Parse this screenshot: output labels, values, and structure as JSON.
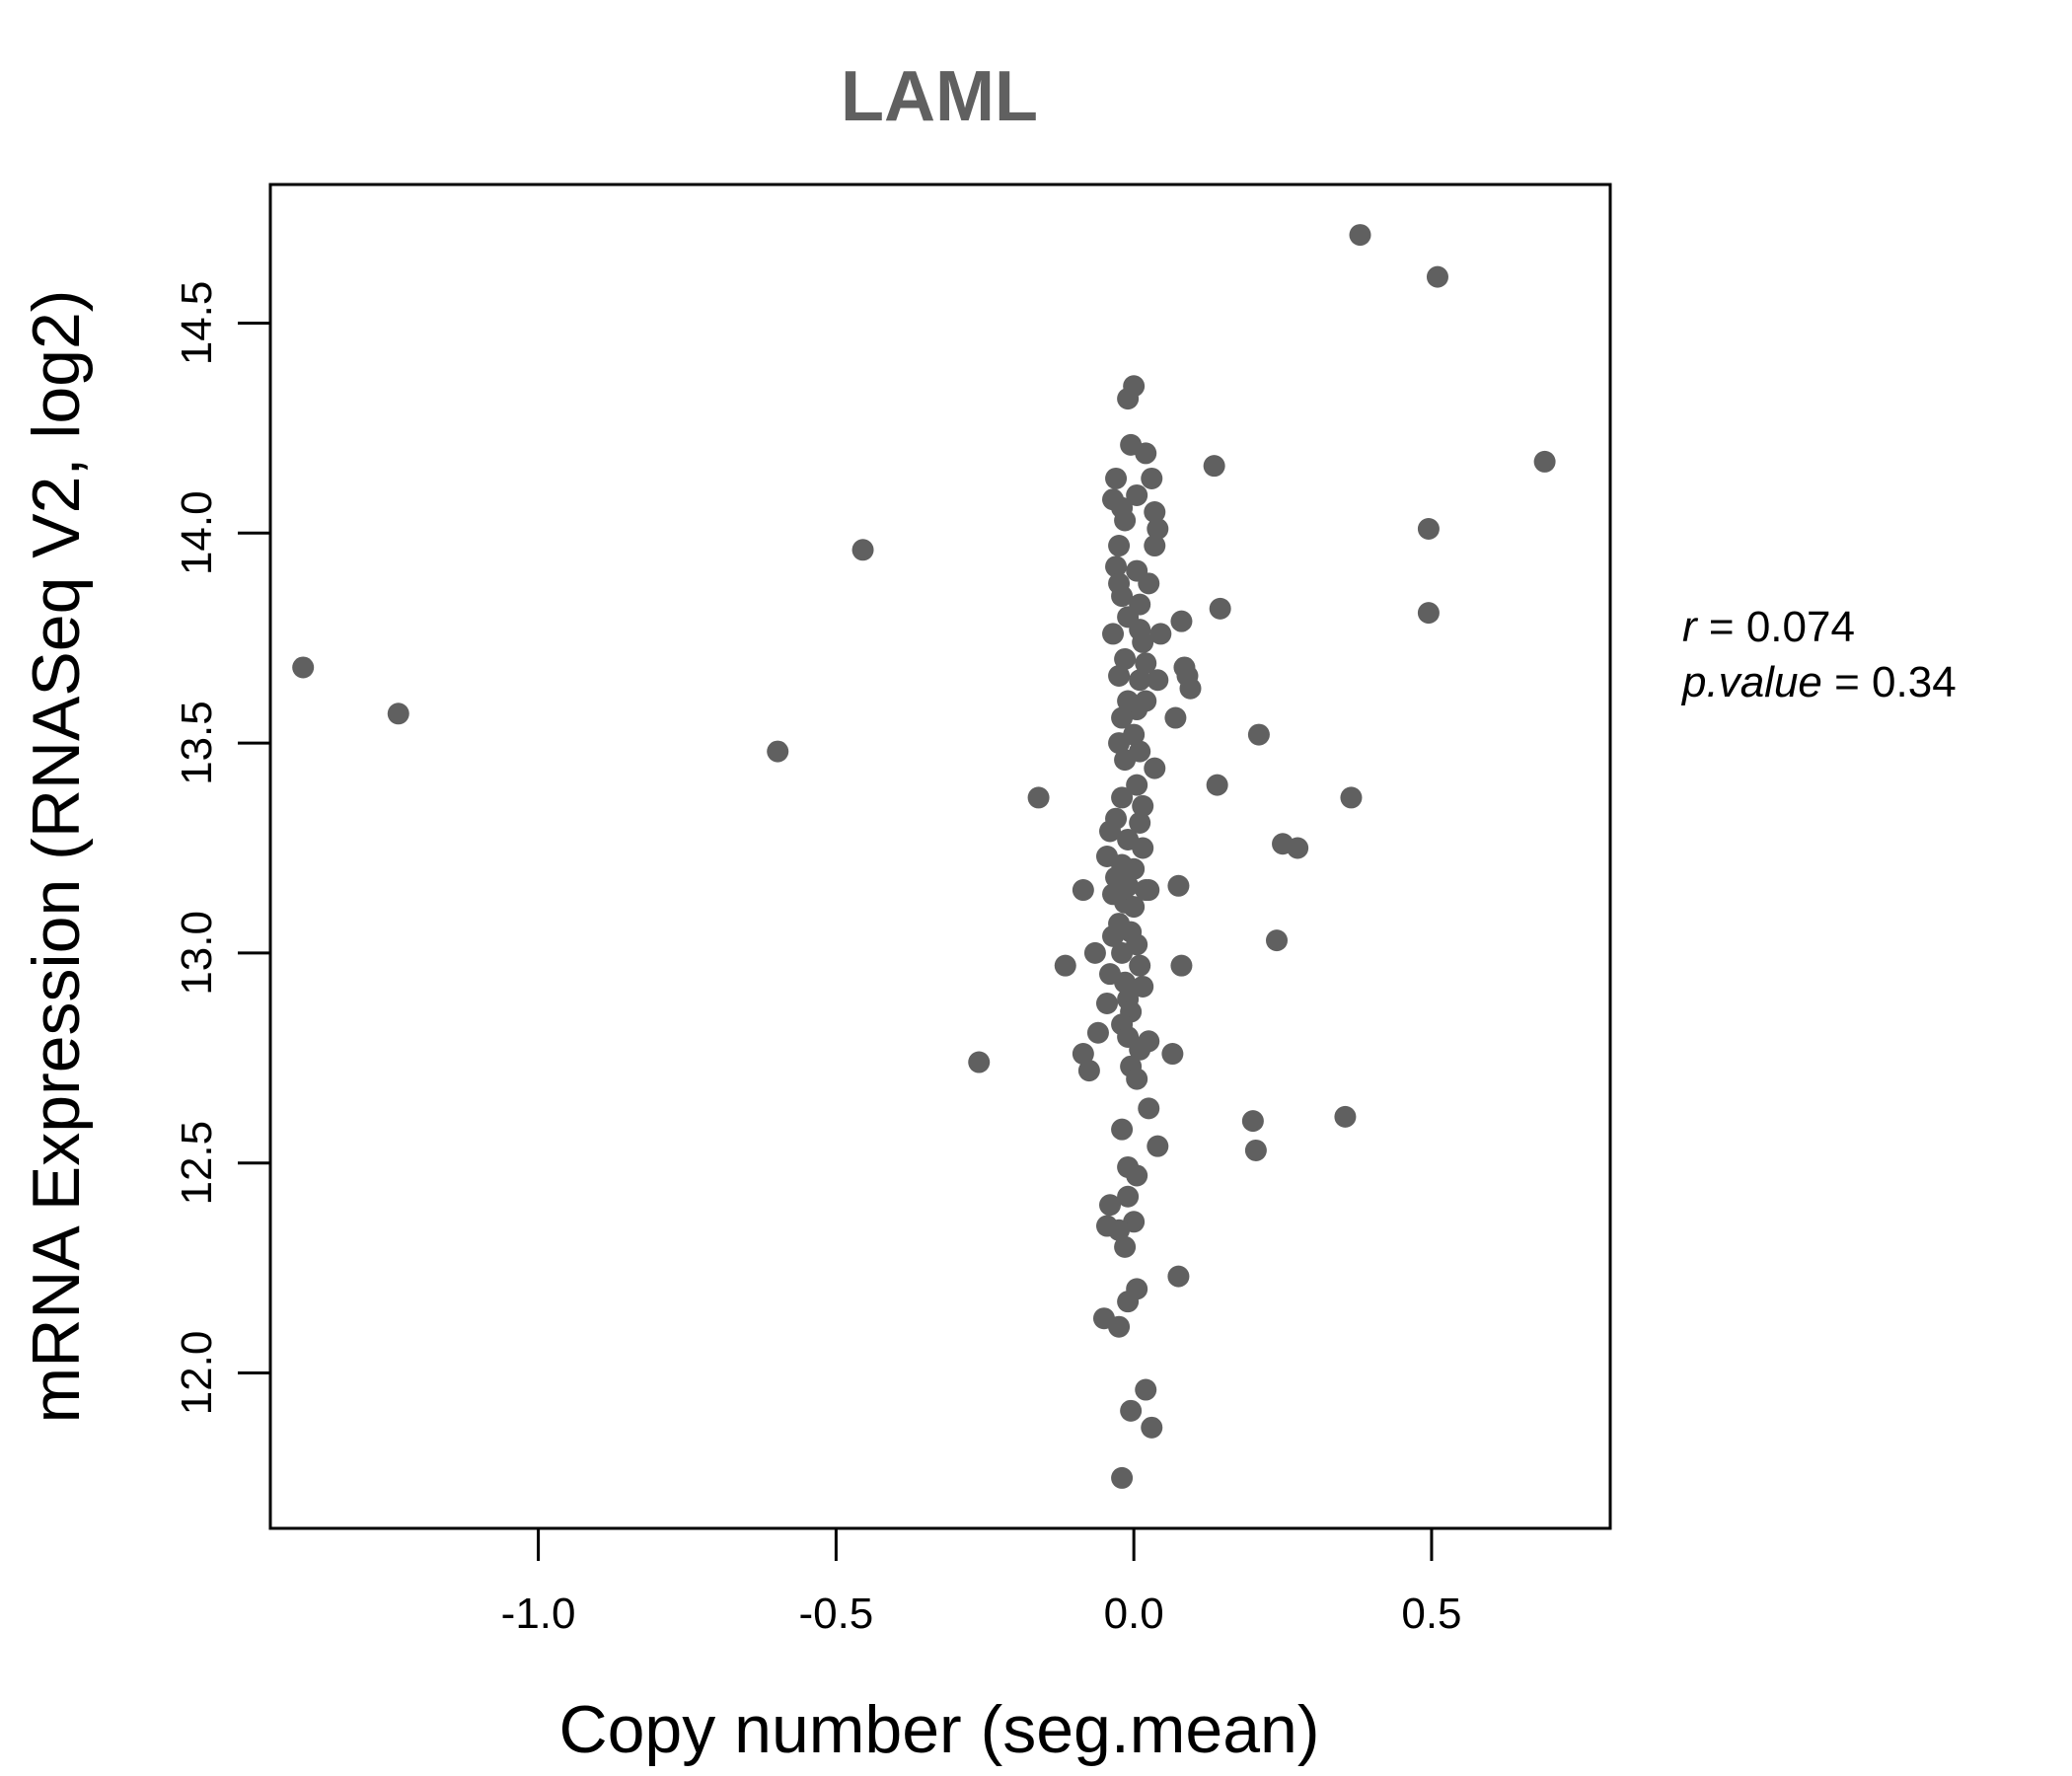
{
  "chart_data": {
    "type": "scatter",
    "title": "LAML",
    "xlabel": "Copy number (seg.mean)",
    "ylabel": "mRNA Expression (RNASeq V2, log2)",
    "xlim": [
      -1.45,
      0.8
    ],
    "ylim": [
      11.63,
      14.83
    ],
    "xticks": [
      -1.0,
      -0.5,
      0.0,
      0.5
    ],
    "xtick_labels": [
      "-1.0",
      "-0.5",
      "0.0",
      "0.5"
    ],
    "yticks": [
      12.0,
      12.5,
      13.0,
      13.5,
      14.0,
      14.5
    ],
    "ytick_labels": [
      "12.0",
      "12.5",
      "13.0",
      "13.5",
      "14.0",
      "14.5"
    ],
    "point_color": "#606060",
    "stats": {
      "r_label": "r",
      "r_value": "0.074",
      "p_label": "p.value",
      "p_value": "0.34"
    },
    "points": [
      [
        -1.395,
        13.68
      ],
      [
        -1.235,
        13.57
      ],
      [
        -0.598,
        13.48
      ],
      [
        -0.455,
        13.96
      ],
      [
        -0.26,
        12.74
      ],
      [
        -0.16,
        13.37
      ],
      [
        0.38,
        14.71
      ],
      [
        0.51,
        14.61
      ],
      [
        0.69,
        14.17
      ],
      [
        0.495,
        14.01
      ],
      [
        0.495,
        13.81
      ],
      [
        0.365,
        13.37
      ],
      [
        0.355,
        12.61
      ],
      [
        0.24,
        13.03
      ],
      [
        0.25,
        13.26
      ],
      [
        0.275,
        13.25
      ],
      [
        0.21,
        13.52
      ],
      [
        0.2,
        12.6
      ],
      [
        0.205,
        12.53
      ],
      [
        0.145,
        13.82
      ],
      [
        0.14,
        13.4
      ],
      [
        0.135,
        14.16
      ],
      [
        0.085,
        13.68
      ],
      [
        0.09,
        13.66
      ],
      [
        0.095,
        13.63
      ],
      [
        0.08,
        13.79
      ],
      [
        0.075,
        13.16
      ],
      [
        0.08,
        12.97
      ],
      [
        0.065,
        12.76
      ],
      [
        0.07,
        13.56
      ],
      [
        0.075,
        12.23
      ],
      [
        0.045,
        13.76
      ],
      [
        0.04,
        14.01
      ],
      [
        0.035,
        13.97
      ],
      [
        0.035,
        13.44
      ],
      [
        0.04,
        12.54
      ],
      [
        0.035,
        14.05
      ],
      [
        0.03,
        14.13
      ],
      [
        0.025,
        13.88
      ],
      [
        0.02,
        14.19
      ],
      [
        0.02,
        13.6
      ],
      [
        0.025,
        13.15
      ],
      [
        0.025,
        12.79
      ],
      [
        0.025,
        12.63
      ],
      [
        0.03,
        11.87
      ],
      [
        0.02,
        11.96
      ],
      [
        0.04,
        13.65
      ],
      [
        0.0,
        14.35
      ],
      [
        -0.01,
        14.32
      ],
      [
        -0.005,
        14.21
      ],
      [
        0.005,
        14.09
      ],
      [
        -0.02,
        14.06
      ],
      [
        -0.03,
        14.13
      ],
      [
        -0.035,
        14.08
      ],
      [
        -0.015,
        14.03
      ],
      [
        -0.025,
        13.97
      ],
      [
        -0.03,
        13.92
      ],
      [
        0.005,
        13.91
      ],
      [
        -0.025,
        13.88
      ],
      [
        -0.02,
        13.85
      ],
      [
        0.01,
        13.83
      ],
      [
        -0.01,
        13.8
      ],
      [
        0.01,
        13.77
      ],
      [
        -0.035,
        13.76
      ],
      [
        0.015,
        13.74
      ],
      [
        -0.015,
        13.7
      ],
      [
        0.02,
        13.69
      ],
      [
        -0.025,
        13.66
      ],
      [
        0.01,
        13.65
      ],
      [
        -0.01,
        13.6
      ],
      [
        0.005,
        13.58
      ],
      [
        -0.02,
        13.56
      ],
      [
        0.0,
        13.52
      ],
      [
        -0.025,
        13.5
      ],
      [
        0.01,
        13.48
      ],
      [
        -0.015,
        13.46
      ],
      [
        0.005,
        13.4
      ],
      [
        -0.02,
        13.37
      ],
      [
        0.015,
        13.35
      ],
      [
        -0.03,
        13.32
      ],
      [
        0.01,
        13.31
      ],
      [
        -0.04,
        13.29
      ],
      [
        -0.01,
        13.27
      ],
      [
        0.015,
        13.25
      ],
      [
        -0.045,
        13.23
      ],
      [
        -0.02,
        13.21
      ],
      [
        0.0,
        13.2
      ],
      [
        -0.03,
        13.18
      ],
      [
        -0.01,
        13.16
      ],
      [
        0.02,
        13.15
      ],
      [
        -0.035,
        13.14
      ],
      [
        -0.015,
        13.12
      ],
      [
        0.0,
        13.11
      ],
      [
        -0.025,
        13.07
      ],
      [
        -0.005,
        13.05
      ],
      [
        -0.035,
        13.04
      ],
      [
        0.005,
        13.02
      ],
      [
        -0.02,
        13.0
      ],
      [
        0.01,
        12.97
      ],
      [
        -0.04,
        12.95
      ],
      [
        -0.015,
        12.93
      ],
      [
        0.015,
        12.92
      ],
      [
        -0.01,
        12.89
      ],
      [
        -0.045,
        12.88
      ],
      [
        -0.005,
        12.86
      ],
      [
        -0.02,
        12.83
      ],
      [
        -0.01,
        12.8
      ],
      [
        0.01,
        12.77
      ],
      [
        -0.005,
        12.73
      ],
      [
        0.005,
        12.7
      ],
      [
        -0.02,
        12.58
      ],
      [
        -0.01,
        12.49
      ],
      [
        0.005,
        12.47
      ],
      [
        -0.01,
        12.42
      ],
      [
        -0.04,
        12.4
      ],
      [
        0.0,
        12.36
      ],
      [
        -0.045,
        12.35
      ],
      [
        -0.025,
        12.34
      ],
      [
        -0.015,
        12.3
      ],
      [
        0.005,
        12.2
      ],
      [
        -0.01,
        12.17
      ],
      [
        -0.05,
        12.13
      ],
      [
        -0.025,
        12.11
      ],
      [
        -0.005,
        11.91
      ],
      [
        -0.02,
        11.75
      ],
      [
        -0.085,
        13.15
      ],
      [
        -0.065,
        13.0
      ],
      [
        -0.115,
        12.97
      ],
      [
        -0.06,
        12.81
      ],
      [
        -0.085,
        12.76
      ],
      [
        -0.075,
        12.72
      ]
    ]
  }
}
